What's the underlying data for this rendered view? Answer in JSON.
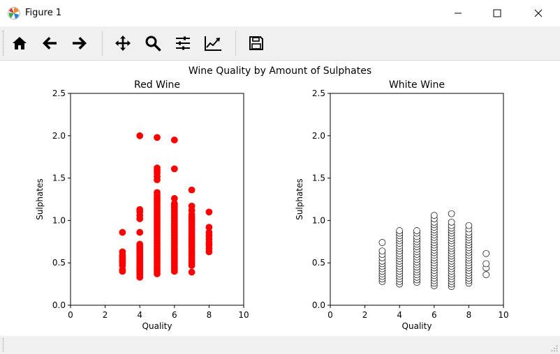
{
  "window": {
    "title": "Figure 1"
  },
  "toolbar": {
    "buttons": [
      {
        "name": "home-button",
        "icon": "home-icon"
      },
      {
        "name": "back-button",
        "icon": "arrow-left-icon"
      },
      {
        "name": "forward-button",
        "icon": "arrow-right-icon"
      },
      {
        "name": "pan-button",
        "icon": "move-icon"
      },
      {
        "name": "zoom-button",
        "icon": "magnifier-icon"
      },
      {
        "name": "subplots-button",
        "icon": "sliders-icon"
      },
      {
        "name": "axes-button",
        "icon": "line-chart-icon"
      },
      {
        "name": "save-button",
        "icon": "floppy-disk-icon"
      }
    ]
  },
  "figure": {
    "suptitle": "Wine Quality by Amount of Sulphates"
  },
  "chart_data": [
    {
      "type": "scatter",
      "title": "Red Wine",
      "xlabel": "Quality",
      "ylabel": "Sulphates",
      "xlim": [
        0,
        10
      ],
      "ylim": [
        0,
        2.5
      ],
      "xticks": [
        "0",
        "2",
        "4",
        "6",
        "8",
        "10"
      ],
      "yticks": [
        "0.0",
        "0.5",
        "1.0",
        "1.5",
        "2.0",
        "2.5"
      ],
      "marker": "filled",
      "color": "#ff0000",
      "grid": false,
      "points": [
        {
          "x": 3,
          "ys": [
            0.4,
            0.42,
            0.47,
            0.5,
            0.52,
            0.54,
            0.57,
            0.59,
            0.63,
            0.86
          ]
        },
        {
          "x": 4,
          "ys": [
            0.33,
            0.36,
            0.38,
            0.4,
            0.42,
            0.44,
            0.46,
            0.48,
            0.5,
            0.52,
            0.54,
            0.56,
            0.58,
            0.6,
            0.62,
            0.64,
            0.66,
            0.68,
            0.7,
            0.72,
            0.86,
            1.02,
            1.06,
            1.1,
            1.13,
            2.0
          ]
        },
        {
          "x": 5,
          "ys": [
            0.37,
            0.4,
            0.43,
            0.46,
            0.49,
            0.52,
            0.55,
            0.58,
            0.61,
            0.64,
            0.67,
            0.7,
            0.73,
            0.76,
            0.79,
            0.82,
            0.85,
            0.88,
            0.91,
            0.94,
            0.97,
            1.0,
            1.03,
            1.06,
            1.09,
            1.12,
            1.15,
            1.18,
            1.21,
            1.24,
            1.27,
            1.3,
            1.33,
            1.48,
            1.52,
            1.56,
            1.59,
            1.62,
            1.98
          ]
        },
        {
          "x": 6,
          "ys": [
            0.4,
            0.43,
            0.46,
            0.49,
            0.52,
            0.55,
            0.58,
            0.61,
            0.64,
            0.67,
            0.7,
            0.73,
            0.76,
            0.79,
            0.82,
            0.85,
            0.88,
            0.91,
            0.94,
            0.97,
            1.0,
            1.03,
            1.06,
            1.09,
            1.12,
            1.15,
            1.18,
            1.2,
            1.26,
            1.61,
            1.95
          ]
        },
        {
          "x": 7,
          "ys": [
            0.39,
            0.47,
            0.5,
            0.53,
            0.56,
            0.59,
            0.62,
            0.65,
            0.68,
            0.71,
            0.74,
            0.77,
            0.8,
            0.83,
            0.86,
            0.89,
            0.92,
            0.95,
            0.98,
            1.01,
            1.04,
            1.07,
            1.12,
            1.17,
            1.36
          ]
        },
        {
          "x": 8,
          "ys": [
            0.63,
            0.67,
            0.71,
            0.74,
            0.78,
            0.82,
            0.86,
            0.92,
            1.1
          ]
        }
      ]
    },
    {
      "type": "scatter",
      "title": "White Wine",
      "xlabel": "Quality",
      "ylabel": "Sulphates",
      "xlim": [
        0,
        10
      ],
      "ylim": [
        0,
        2.5
      ],
      "xticks": [
        "0",
        "2",
        "4",
        "6",
        "8",
        "10"
      ],
      "yticks": [
        "0.0",
        "0.5",
        "1.0",
        "1.5",
        "2.0",
        "2.5"
      ],
      "marker": "hollow",
      "color": "#000000",
      "grid": false,
      "points": [
        {
          "x": 3,
          "ys": [
            0.28,
            0.31,
            0.34,
            0.37,
            0.4,
            0.43,
            0.46,
            0.49,
            0.52,
            0.56,
            0.6,
            0.64,
            0.74
          ]
        },
        {
          "x": 4,
          "ys": [
            0.25,
            0.28,
            0.31,
            0.34,
            0.37,
            0.4,
            0.43,
            0.46,
            0.49,
            0.52,
            0.55,
            0.58,
            0.61,
            0.64,
            0.67,
            0.7,
            0.73,
            0.76,
            0.79,
            0.82,
            0.85,
            0.88
          ]
        },
        {
          "x": 5,
          "ys": [
            0.27,
            0.3,
            0.33,
            0.36,
            0.39,
            0.42,
            0.45,
            0.48,
            0.51,
            0.54,
            0.57,
            0.6,
            0.63,
            0.66,
            0.69,
            0.72,
            0.75,
            0.78,
            0.81,
            0.85,
            0.88
          ]
        },
        {
          "x": 6,
          "ys": [
            0.23,
            0.26,
            0.29,
            0.32,
            0.35,
            0.38,
            0.41,
            0.44,
            0.47,
            0.5,
            0.53,
            0.56,
            0.59,
            0.62,
            0.65,
            0.68,
            0.71,
            0.74,
            0.77,
            0.8,
            0.83,
            0.86,
            0.89,
            0.92,
            0.95,
            0.98,
            1.02,
            1.06
          ]
        },
        {
          "x": 7,
          "ys": [
            0.22,
            0.25,
            0.28,
            0.31,
            0.34,
            0.37,
            0.4,
            0.43,
            0.46,
            0.49,
            0.52,
            0.55,
            0.58,
            0.61,
            0.64,
            0.67,
            0.7,
            0.73,
            0.76,
            0.79,
            0.82,
            0.85,
            0.88,
            0.91,
            0.94,
            0.98,
            1.08
          ]
        },
        {
          "x": 8,
          "ys": [
            0.26,
            0.29,
            0.32,
            0.35,
            0.38,
            0.41,
            0.44,
            0.47,
            0.5,
            0.53,
            0.56,
            0.59,
            0.62,
            0.65,
            0.68,
            0.71,
            0.74,
            0.77,
            0.8,
            0.83,
            0.86,
            0.9,
            0.94
          ]
        },
        {
          "x": 9,
          "ys": [
            0.36,
            0.44,
            0.49,
            0.61
          ]
        }
      ]
    }
  ]
}
